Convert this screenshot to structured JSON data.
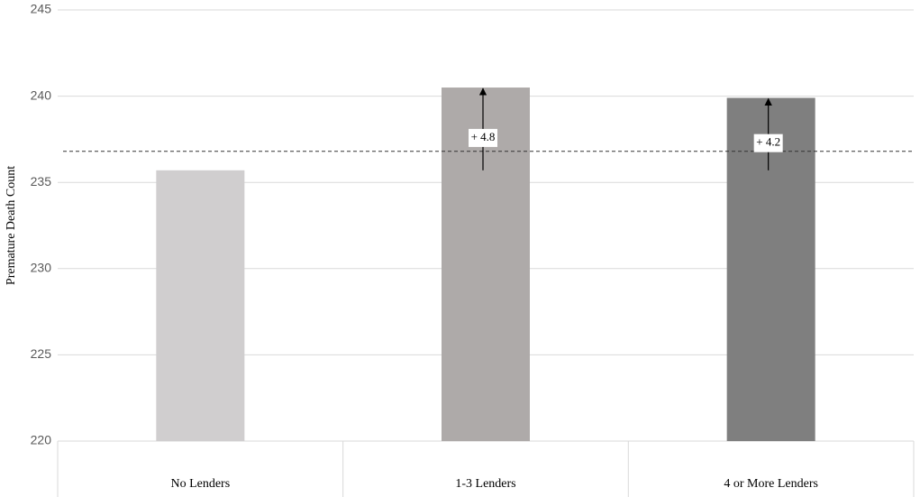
{
  "chart_data": {
    "type": "bar",
    "y_label": "Premature Death Count",
    "categories": [
      "No Lenders",
      "1-3 Lenders",
      "4 or More Lenders"
    ],
    "values": [
      235.7,
      240.5,
      239.9
    ],
    "colors": [
      "#d0cecf",
      "#aeaaa9",
      "#7f7f7f"
    ],
    "ylim": [
      220,
      245
    ],
    "yticks": [
      220,
      225,
      230,
      235,
      240,
      245
    ],
    "grid": true,
    "reference_line": 236.8,
    "annotations": [
      {
        "category": 1,
        "value": 4.8,
        "label": "+ 4.8"
      },
      {
        "category": 2,
        "value": 4.2,
        "label": "+ 4.2"
      }
    ]
  }
}
